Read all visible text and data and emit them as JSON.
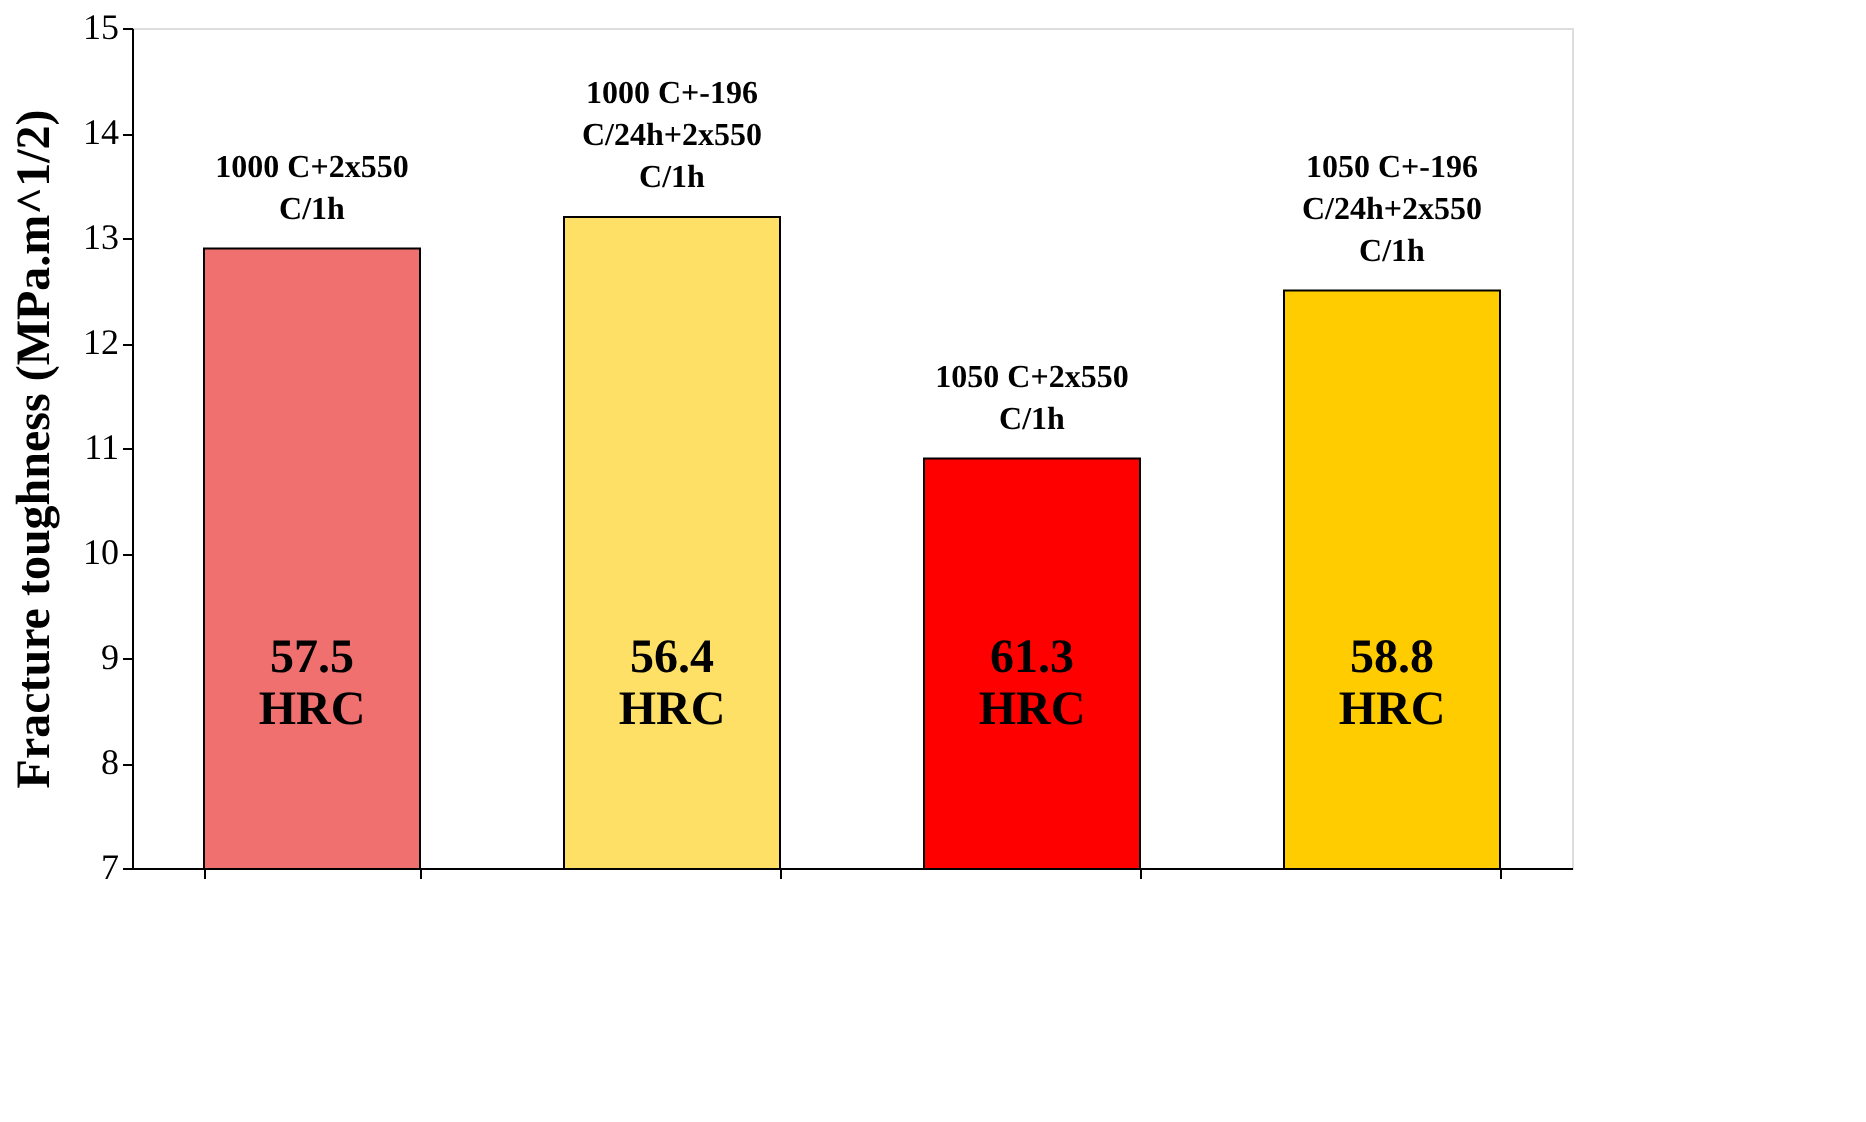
{
  "chart_data": {
    "type": "bar",
    "ylabel": "Fracture toughness (MPa.m^1/2)",
    "categories": [
      "1000 C+2x550\nC/1h",
      "1000 C+-196\nC/24h+2x550\nC/1h",
      "1050 C+2x550\nC/1h",
      "1050 C+-196\nC/24h+2x550\nC/1h"
    ],
    "values": [
      12.9,
      13.2,
      10.9,
      12.5
    ],
    "colors": [
      "#f07070",
      "#ffe066",
      "#ff0000",
      "#ffcc00"
    ],
    "ylim": [
      7,
      15
    ],
    "yticks": [
      7,
      8,
      9,
      10,
      11,
      12,
      13,
      14,
      15
    ],
    "grid": false,
    "annotations": [
      "57.5 HRC",
      "56.4 HRC",
      "61.3 HRC",
      "58.8 HRC"
    ]
  }
}
